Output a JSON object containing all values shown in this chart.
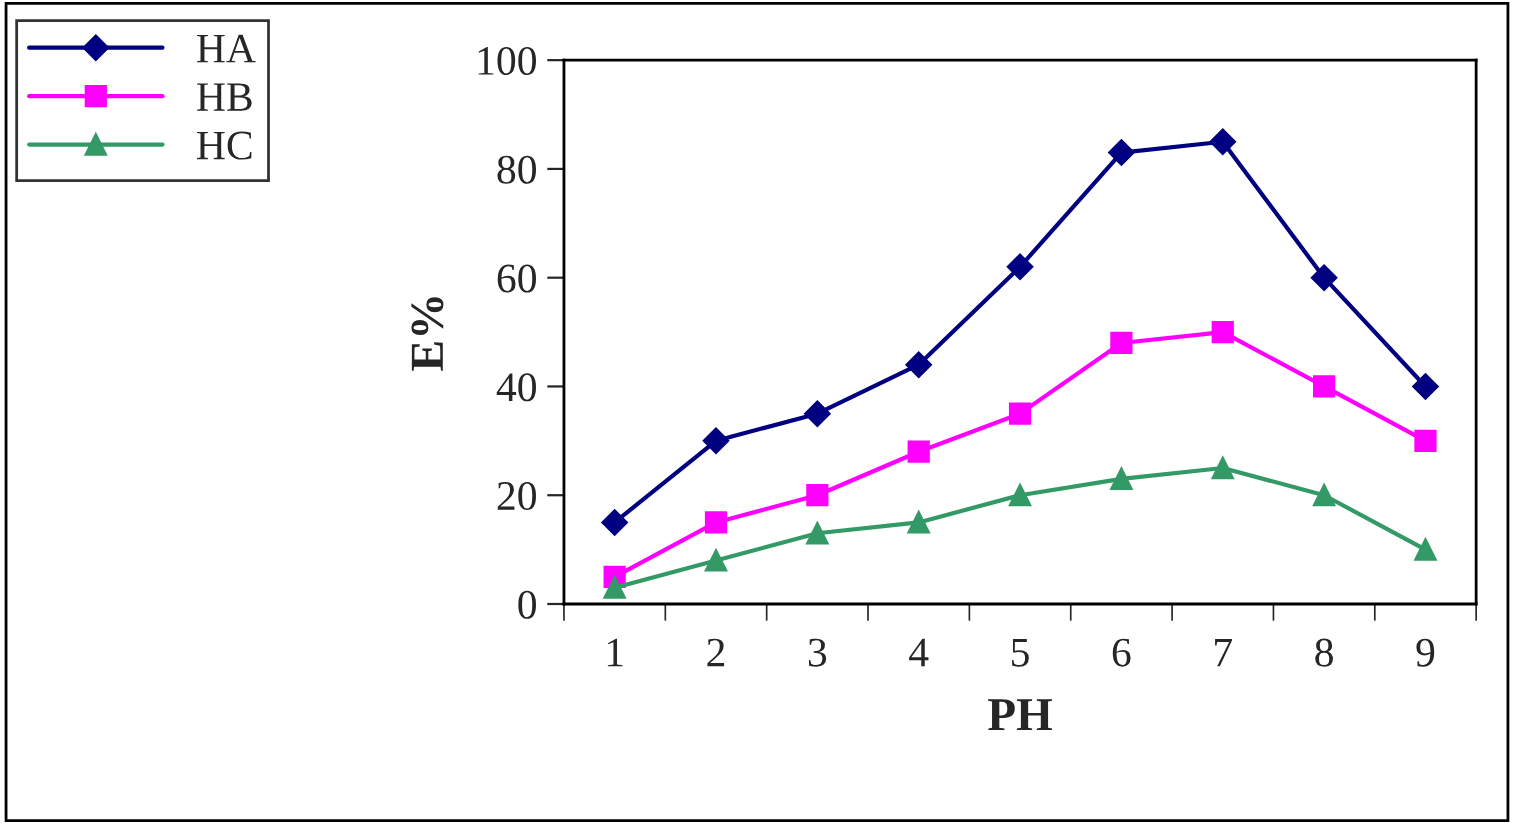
{
  "chart_data": {
    "type": "line",
    "xlabel": "PH",
    "ylabel": "E%",
    "categories": [
      "1",
      "2",
      "3",
      "4",
      "5",
      "6",
      "7",
      "8",
      "9"
    ],
    "series": [
      {
        "name": "HA",
        "color": "#000080",
        "marker": "diamond",
        "values": [
          15,
          30,
          35,
          44,
          62,
          83,
          85,
          60,
          40
        ]
      },
      {
        "name": "HB",
        "color": "#ff00ff",
        "marker": "square",
        "values": [
          5,
          15,
          20,
          28,
          35,
          48,
          50,
          40,
          30
        ]
      },
      {
        "name": "HC",
        "color": "#339966",
        "marker": "triangle",
        "values": [
          3,
          8,
          13,
          15,
          20,
          23,
          25,
          20,
          10
        ]
      }
    ],
    "ylim": [
      0,
      100
    ],
    "yticks": [
      0,
      20,
      40,
      60,
      80,
      100
    ],
    "grid": false,
    "legend": "top left",
    "line_style": "solid"
  }
}
